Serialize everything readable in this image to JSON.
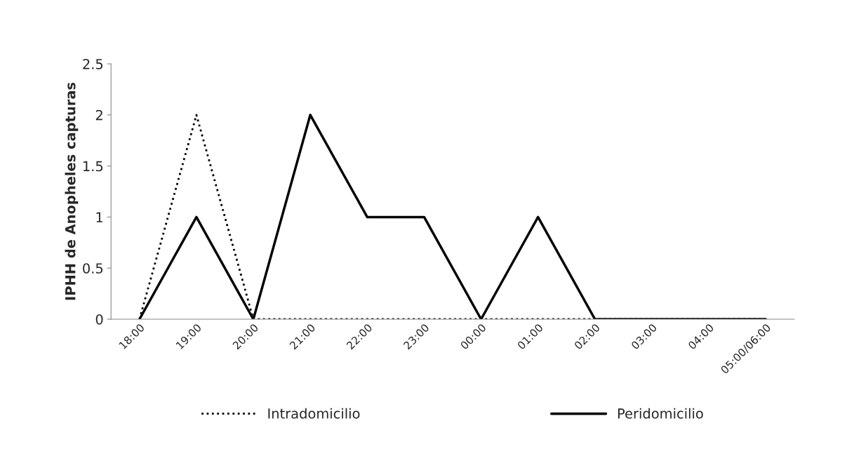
{
  "chart_data": {
    "type": "line",
    "ylabel": "IPHH de Anopheles capturas",
    "categories": [
      "18:00",
      "19:00",
      "20:00",
      "21:00",
      "22:00",
      "23:00",
      "00:00",
      "01:00",
      "02:00",
      "03:00",
      "04:00",
      "05:00/06:00"
    ],
    "series": [
      {
        "name": "Intradomicilio",
        "color": "#000000",
        "line_style": "dotted",
        "values": [
          0,
          2,
          0,
          0,
          0,
          0,
          0,
          0,
          0,
          0,
          0,
          0
        ]
      },
      {
        "name": "Peridomicilio",
        "color": "#000000",
        "line_style": "solid",
        "values": [
          0,
          1,
          0,
          2,
          1,
          1,
          0,
          1,
          0,
          0,
          0,
          0
        ]
      }
    ],
    "ylim": [
      0,
      2.5
    ],
    "yticks": [
      0,
      0.5,
      1,
      1.5,
      2,
      2.5
    ],
    "grid": false,
    "legend": "bottom",
    "marker": "none"
  }
}
